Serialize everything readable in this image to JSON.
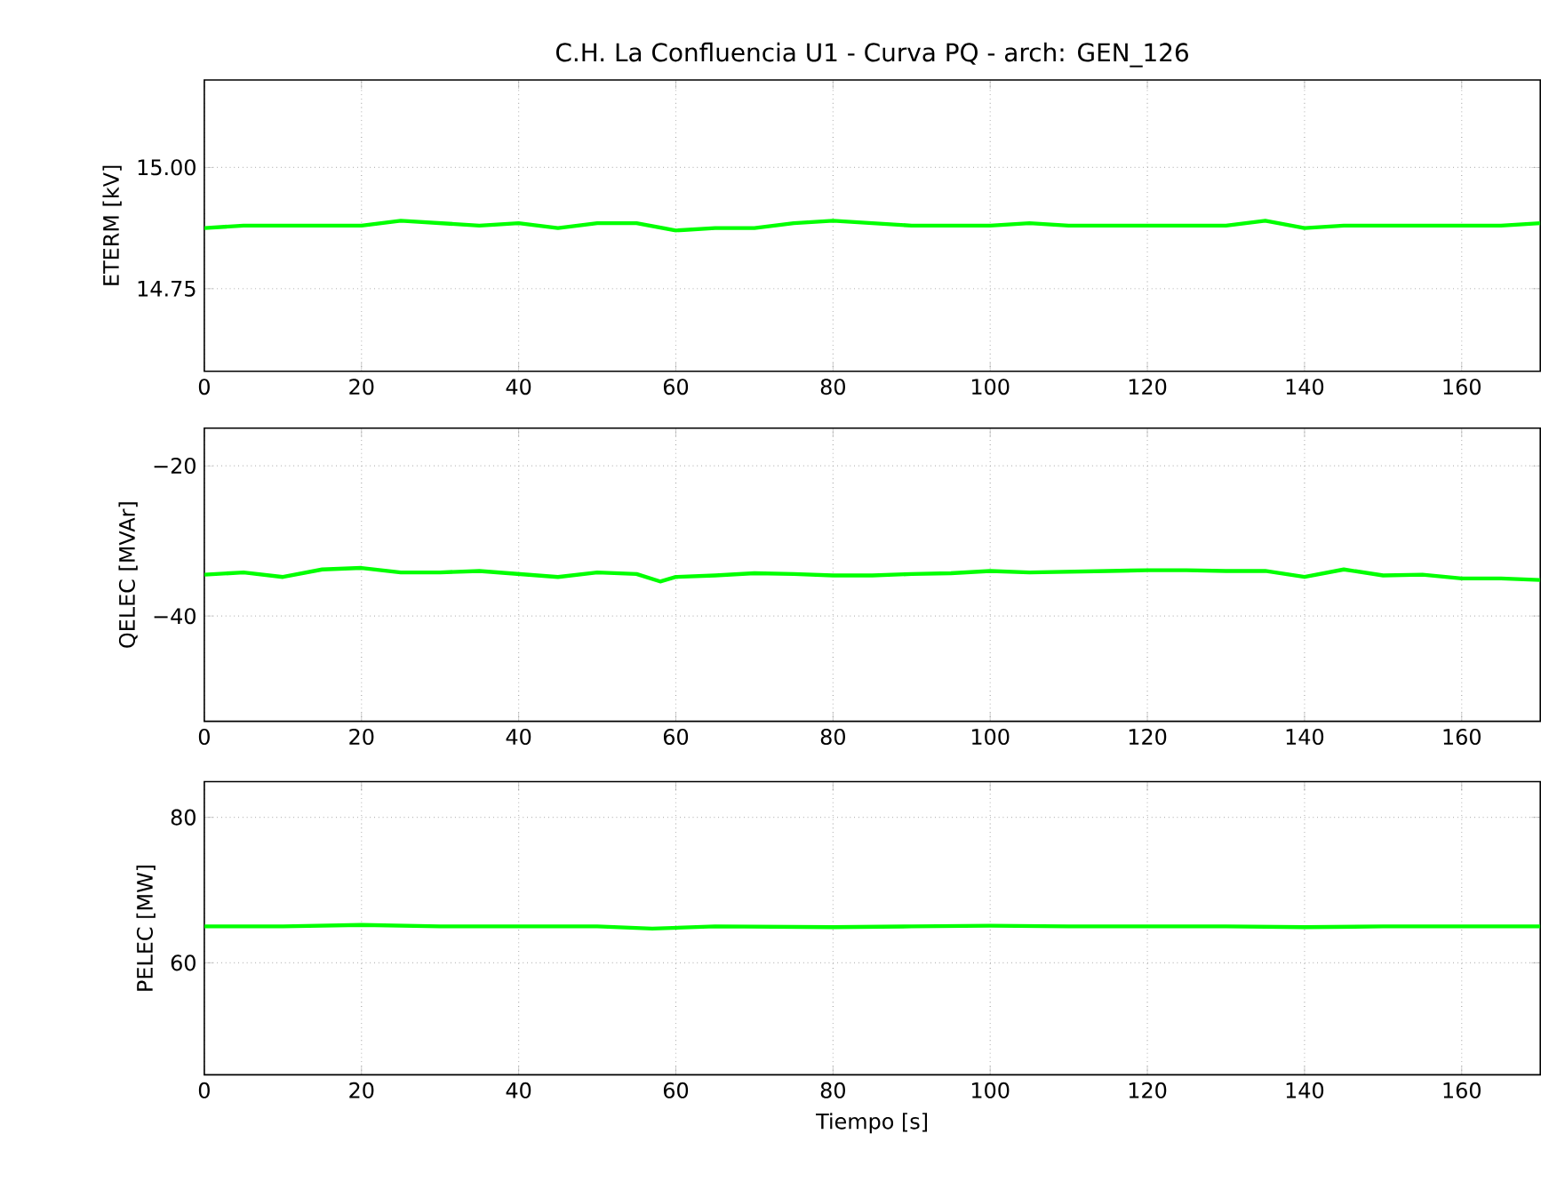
{
  "chart_data": [
    {
      "type": "line",
      "title": "C.H. La Confluencia U1 - Curva PQ - arch: GEN_126",
      "ylabel": "ETERM [kV]",
      "xlim": [
        0,
        170
      ],
      "xticks": [
        0,
        20,
        40,
        60,
        80,
        100,
        120,
        140,
        160
      ],
      "ylim": [
        14.58,
        15.18
      ],
      "yticks": [
        {
          "value": 15.0,
          "label": "15.00"
        },
        {
          "value": 14.75,
          "label": "14.75"
        }
      ],
      "grid": true,
      "x": [
        0,
        5,
        10,
        15,
        20,
        25,
        30,
        35,
        40,
        45,
        50,
        55,
        60,
        65,
        70,
        75,
        80,
        85,
        90,
        95,
        100,
        105,
        110,
        115,
        120,
        125,
        130,
        135,
        140,
        145,
        150,
        155,
        160,
        165,
        170
      ],
      "series": [
        {
          "color": "#00ff00",
          "values": [
            14.875,
            14.88,
            14.88,
            14.88,
            14.88,
            14.89,
            14.885,
            14.88,
            14.885,
            14.875,
            14.885,
            14.885,
            14.87,
            14.875,
            14.875,
            14.885,
            14.89,
            14.885,
            14.88,
            14.88,
            14.88,
            14.885,
            14.88,
            14.88,
            14.88,
            14.88,
            14.88,
            14.89,
            14.875,
            14.88,
            14.88,
            14.88,
            14.88,
            14.88,
            14.885
          ]
        }
      ]
    },
    {
      "type": "line",
      "ylabel": "QELEC [MVAr]",
      "xlim": [
        0,
        170
      ],
      "xticks": [
        0,
        20,
        40,
        60,
        80,
        100,
        120,
        140,
        160
      ],
      "ylim": [
        -54,
        -15
      ],
      "yticks": [
        {
          "value": -20,
          "label": "−20"
        },
        {
          "value": -40,
          "label": "−40"
        }
      ],
      "grid": true,
      "x": [
        0,
        5,
        10,
        15,
        20,
        25,
        30,
        35,
        40,
        45,
        50,
        55,
        58,
        60,
        65,
        70,
        75,
        80,
        85,
        90,
        95,
        100,
        105,
        110,
        115,
        120,
        125,
        130,
        135,
        140,
        145,
        150,
        155,
        160,
        165,
        170
      ],
      "series": [
        {
          "color": "#00ff00",
          "values": [
            -34.5,
            -34.2,
            -34.8,
            -33.8,
            -33.6,
            -34.2,
            -34.2,
            -34,
            -34.4,
            -34.8,
            -34.2,
            -34.4,
            -35.4,
            -34.8,
            -34.6,
            -34.3,
            -34.4,
            -34.6,
            -34.6,
            -34.4,
            -34.3,
            -34,
            -34.2,
            -34.1,
            -34,
            -33.9,
            -33.9,
            -34,
            -34,
            -34.8,
            -33.8,
            -34.6,
            -34.5,
            -35,
            -35,
            -35.2
          ]
        }
      ]
    },
    {
      "type": "line",
      "ylabel": "PELEC [MW]",
      "xlabel": "Tiempo [s]",
      "xlim": [
        0,
        170
      ],
      "xticks": [
        0,
        20,
        40,
        60,
        80,
        100,
        120,
        140,
        160
      ],
      "ylim": [
        44.6,
        84.9
      ],
      "yticks": [
        80,
        60
      ],
      "grid": true,
      "x": [
        0,
        10,
        20,
        30,
        40,
        50,
        57,
        65,
        80,
        90,
        100,
        110,
        120,
        130,
        140,
        150,
        160,
        170
      ],
      "series": [
        {
          "color": "#00ff00",
          "values": [
            65,
            65,
            65.2,
            65,
            65,
            65,
            64.7,
            65,
            64.9,
            65,
            65.1,
            65,
            65,
            65,
            64.9,
            65,
            65,
            65
          ]
        }
      ]
    }
  ]
}
